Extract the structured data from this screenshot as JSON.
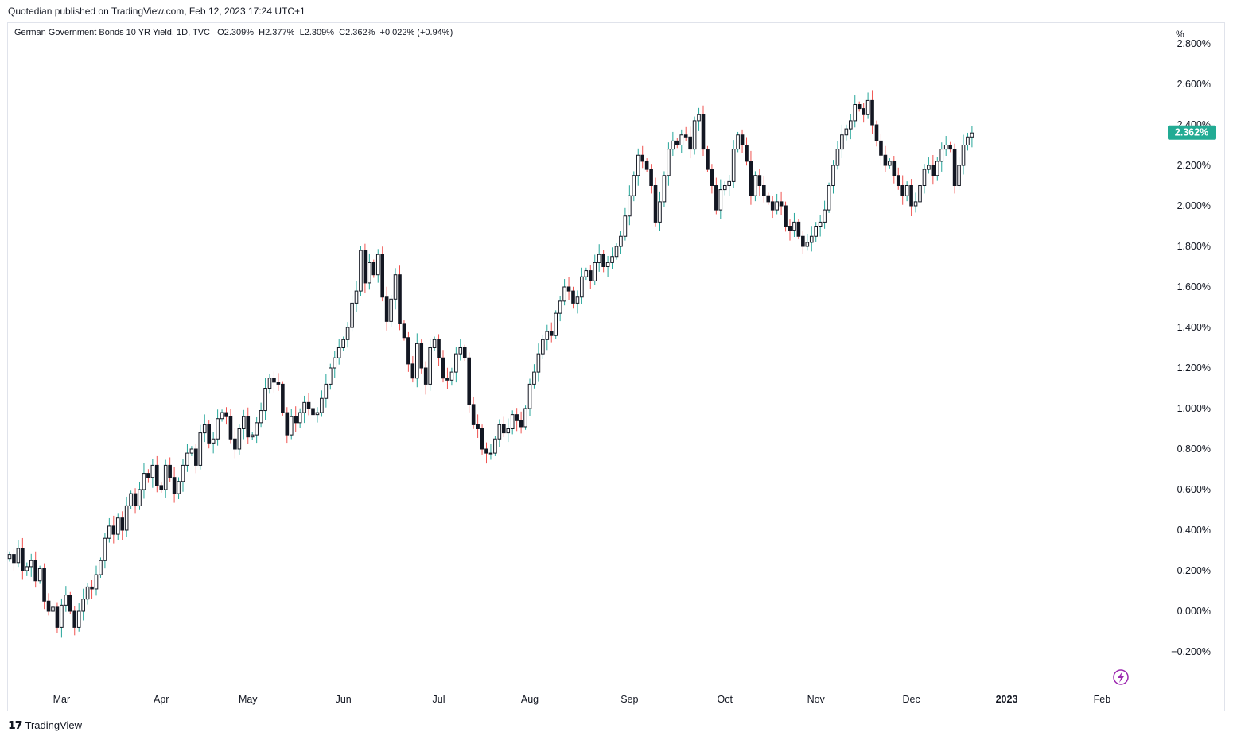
{
  "publisher_line": "Quotedian published on TradingView.com, Feb 12, 2023 17:24 UTC+1",
  "legend": {
    "symbol": "German Government Bonds 10 YR Yield, 1D, TVC",
    "o_label": "O",
    "o": "2.309%",
    "h_label": "H",
    "h": "2.377%",
    "l_label": "L",
    "l": "2.309%",
    "c_label": "C",
    "c": "2.362%",
    "change": "+0.022% (+0.94%)"
  },
  "unit_label": "%",
  "last_price_tag": "2.362%",
  "footer_brand": "TradingView",
  "colors": {
    "up": "#26a69a",
    "down": "#ef5350",
    "body_up": "#ffffff",
    "body": "#131722",
    "tag": "#22ab94",
    "bolt": "#9c27b0"
  },
  "chart_data": {
    "type": "candlestick",
    "title": "German Government Bonds 10 YR Yield, 1D, TVC",
    "ylabel": "%",
    "ylim": [
      -0.3,
      2.8
    ],
    "y_ticks": [
      "2.800%",
      "2.600%",
      "2.400%",
      "2.200%",
      "2.000%",
      "1.800%",
      "1.600%",
      "1.400%",
      "1.200%",
      "1.000%",
      "0.800%",
      "0.600%",
      "0.400%",
      "0.200%",
      "0.000%",
      "−0.200%"
    ],
    "y_tick_values": [
      2.8,
      2.6,
      2.4,
      2.2,
      2.0,
      1.8,
      1.6,
      1.4,
      1.2,
      1.0,
      0.8,
      0.6,
      0.4,
      0.2,
      0.0,
      -0.2
    ],
    "x_ticks": [
      {
        "label": "Mar",
        "index": 12,
        "bold": false
      },
      {
        "label": "Apr",
        "index": 35,
        "bold": false
      },
      {
        "label": "May",
        "index": 55,
        "bold": false
      },
      {
        "label": "Jun",
        "index": 77,
        "bold": false
      },
      {
        "label": "Jul",
        "index": 99,
        "bold": false
      },
      {
        "label": "Aug",
        "index": 120,
        "bold": false
      },
      {
        "label": "Sep",
        "index": 143,
        "bold": false
      },
      {
        "label": "Oct",
        "index": 165,
        "bold": false
      },
      {
        "label": "Nov",
        "index": 186,
        "bold": false
      },
      {
        "label": "Dec",
        "index": 208,
        "bold": false
      },
      {
        "label": "2023",
        "index": 230,
        "bold": true
      },
      {
        "label": "Feb",
        "index": 252,
        "bold": false
      }
    ],
    "closes": [
      0.28,
      0.24,
      0.31,
      0.2,
      0.22,
      0.25,
      0.15,
      0.21,
      0.05,
      0.0,
      0.02,
      -0.08,
      0.03,
      0.08,
      0.0,
      -0.08,
      0.0,
      0.06,
      0.12,
      0.11,
      0.18,
      0.25,
      0.36,
      0.42,
      0.38,
      0.46,
      0.4,
      0.52,
      0.58,
      0.52,
      0.6,
      0.68,
      0.66,
      0.72,
      0.62,
      0.6,
      0.72,
      0.66,
      0.58,
      0.64,
      0.72,
      0.78,
      0.8,
      0.72,
      0.88,
      0.92,
      0.83,
      0.85,
      0.95,
      0.98,
      0.96,
      0.85,
      0.8,
      0.9,
      0.96,
      0.86,
      0.87,
      0.93,
      0.99,
      1.1,
      1.15,
      1.13,
      1.12,
      0.98,
      0.87,
      0.96,
      0.93,
      0.98,
      1.03,
      1.0,
      0.97,
      0.98,
      1.05,
      1.12,
      1.2,
      1.25,
      1.3,
      1.34,
      1.4,
      1.52,
      1.58,
      1.78,
      1.62,
      1.72,
      1.66,
      1.76,
      1.55,
      1.43,
      1.54,
      1.66,
      1.42,
      1.35,
      1.22,
      1.15,
      1.32,
      1.2,
      1.12,
      1.3,
      1.34,
      1.25,
      1.15,
      1.14,
      1.18,
      1.27,
      1.3,
      1.25,
      1.02,
      0.92,
      0.9,
      0.8,
      0.78,
      0.78,
      0.85,
      0.92,
      0.88,
      0.9,
      0.97,
      0.94,
      0.91,
      1.0,
      1.12,
      1.18,
      1.27,
      1.34,
      1.38,
      1.36,
      1.47,
      1.53,
      1.6,
      1.58,
      1.52,
      1.55,
      1.65,
      1.68,
      1.63,
      1.72,
      1.76,
      1.7,
      1.72,
      1.75,
      1.8,
      1.85,
      1.95,
      2.05,
      2.15,
      2.25,
      2.22,
      2.18,
      2.1,
      1.92,
      2.02,
      2.15,
      2.28,
      2.32,
      2.3,
      2.35,
      2.34,
      2.28,
      2.42,
      2.45,
      2.28,
      2.18,
      2.1,
      1.98,
      2.08,
      2.1,
      2.12,
      2.28,
      2.35,
      2.3,
      2.22,
      2.05,
      2.15,
      2.1,
      2.05,
      2.02,
      1.98,
      2.02,
      2.0,
      1.9,
      1.88,
      1.92,
      1.85,
      1.8,
      1.82,
      1.85,
      1.9,
      1.92,
      1.98,
      2.1,
      2.2,
      2.28,
      2.35,
      2.38,
      2.42,
      2.5,
      2.48,
      2.45,
      2.52,
      2.4,
      2.32,
      2.25,
      2.2,
      2.22,
      2.15,
      2.1,
      2.05,
      2.1,
      2.0,
      2.02,
      2.1,
      2.18,
      2.2,
      2.15,
      2.22,
      2.28,
      2.3,
      2.28,
      2.1,
      2.2,
      2.3,
      2.34,
      2.36
    ],
    "last": {
      "open": 2.309,
      "high": 2.377,
      "low": 2.309,
      "close": 2.362
    }
  }
}
